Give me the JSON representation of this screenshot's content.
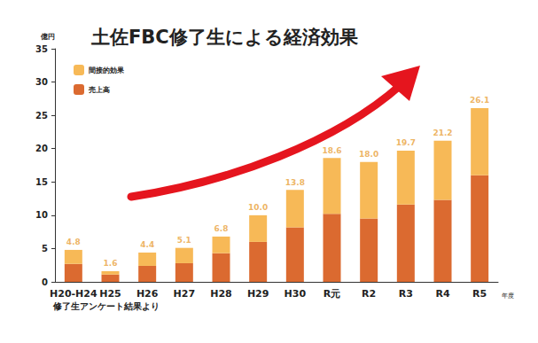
{
  "chart_data": {
    "type": "bar",
    "title": "土佐FBC修了生による経済効果",
    "categories": [
      "H20-H24",
      "H25",
      "H26",
      "H27",
      "H28",
      "H29",
      "H30",
      "R元",
      "R2",
      "R3",
      "R4",
      "R5"
    ],
    "series": [
      {
        "name": "売上高",
        "color": "#DB6A30",
        "values": [
          2.7,
          1.1,
          2.4,
          2.8,
          4.3,
          6.0,
          8.2,
          10.2,
          9.5,
          11.6,
          12.3,
          16.0
        ]
      },
      {
        "name": "間接的効果",
        "color": "#F7B957",
        "values": [
          2.1,
          0.5,
          2.0,
          2.3,
          2.5,
          4.0,
          5.6,
          8.4,
          8.5,
          8.1,
          8.9,
          10.1
        ]
      }
    ],
    "totals": [
      4.8,
      1.6,
      4.4,
      5.1,
      6.8,
      10.0,
      13.8,
      18.6,
      18.0,
      19.7,
      21.2,
      26.1
    ],
    "total_labels": [
      "4.8",
      "1.6",
      "4.4",
      "5.1",
      "6.8",
      "10.0",
      "13.8",
      "18.6",
      "18.0",
      "19.7",
      "21.2",
      "26.1"
    ],
    "ylabel": "億円",
    "xlabel": "年度",
    "annotations": [
      "修了生アンケート結果より"
    ],
    "ylim": [
      0,
      35
    ],
    "yticks": [
      0,
      5,
      10,
      15,
      20,
      25,
      30,
      35
    ],
    "stacked": true,
    "grid": false,
    "legend": "upper left",
    "data_labels": false
  }
}
